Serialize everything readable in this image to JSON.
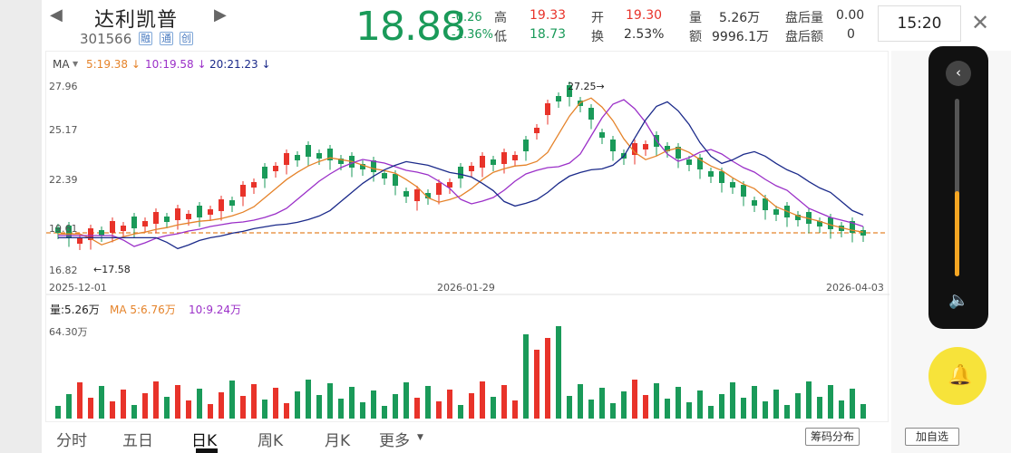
{
  "stock": {
    "name": "达利凯普",
    "code": "301566",
    "tags": [
      "融",
      "通",
      "创"
    ]
  },
  "quote": {
    "price": "18.88",
    "change": "-0.26",
    "change_pct": "-1.36%",
    "high_label": "高",
    "high": "19.33",
    "low_label": "低",
    "low": "18.73",
    "open_label": "开",
    "open": "19.30",
    "turnover_label": "换",
    "turnover": "2.53%",
    "volume_label": "量",
    "volume": "5.26万",
    "amount_label": "额",
    "amount": "9996.1万",
    "post_vol_label": "盘后量",
    "post_vol": "0.00",
    "post_amt_label": "盘后额",
    "post_amt": "0"
  },
  "time": "15:20",
  "chart": {
    "ma_label": "MA",
    "ma5": "5:19.38 ↓",
    "ma10": "10:19.58 ↓",
    "ma20": "20:21.23 ↓",
    "y_ticks": [
      "27.96",
      "25.17",
      "22.39",
      "19.61",
      "16.82"
    ],
    "x_ticks": [
      "2025-12-01",
      "2026-01-29",
      "2026-04-03"
    ],
    "max_note": "27.25→",
    "min_note": "←17.58",
    "vol_label": "量:5.26万",
    "vol_ma_label": "MA 5:6.76万",
    "vol_ma10": "10:9.24万",
    "vol_max": "64.30万"
  },
  "colors": {
    "up": "#e8332a",
    "down": "#1a9a59",
    "ma5": "#e5832a",
    "ma10": "#9b30c8",
    "ma20": "#1b2a8a"
  },
  "tabs": [
    "分时",
    "五日",
    "日K",
    "周K",
    "月K",
    "更多"
  ],
  "buttons": {
    "chip": "筹码分布",
    "add": "加自选"
  },
  "icons": [
    "back-icon",
    "forward-icon",
    "close-icon",
    "collapse-icon",
    "volume-icon",
    "bell-icon"
  ]
}
